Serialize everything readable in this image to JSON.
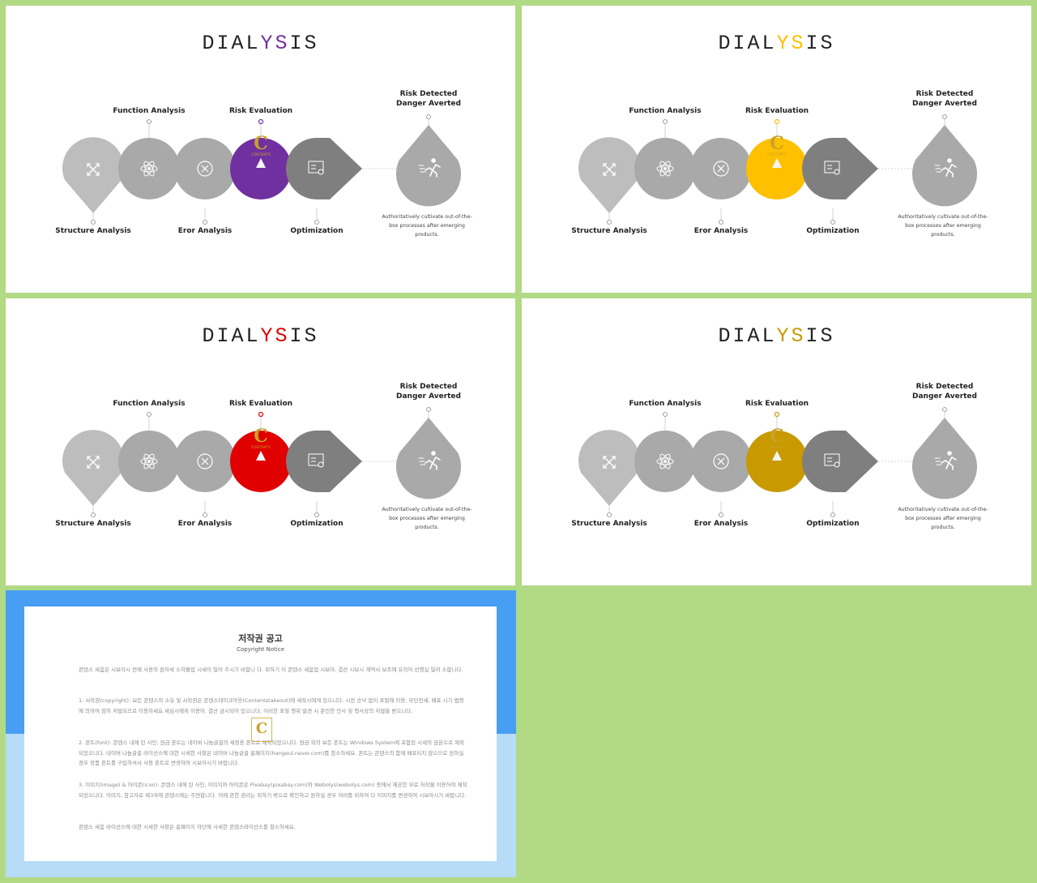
{
  "slides": [
    {
      "title_parts": [
        "DIAL",
        "YS",
        "IS"
      ],
      "accent": "#7030a0"
    },
    {
      "title_parts": [
        "DIAL",
        "YS",
        "IS"
      ],
      "accent": "#ffc000"
    },
    {
      "title_parts": [
        "DIAL",
        "YS",
        "IS"
      ],
      "accent": "#e00000"
    },
    {
      "title_parts": [
        "DIAL",
        "YS",
        "IS"
      ],
      "accent": "#c89a00"
    }
  ],
  "labels": {
    "structure": "Structure Analysis",
    "function": "Function Analysis",
    "error": "Eror Analysis",
    "risk": "Risk Evaluation",
    "optimization": "Optimization",
    "risk_detected": "Risk Detected",
    "danger_averted": "Danger Averted",
    "description": "Authoritatively cultivate out-of-the-box processes after emerging products."
  },
  "icons": [
    "expand-arrows-icon",
    "atom-icon",
    "circle-x-icon",
    "traffic-cone-icon",
    "certificate-icon",
    "running-man-icon"
  ],
  "watermark": {
    "letter": "C",
    "text": "CONTENTS"
  },
  "colors": {
    "light_gray": "#bdbdbd",
    "mid_gray": "#a9a9a9",
    "dark_gray": "#7f7f7f",
    "background": "#b2da84",
    "notice_blue": "#479ef2",
    "notice_light_blue": "#b7dcf8"
  },
  "notice": {
    "title": "저작권 공고",
    "subtitle": "Copyright Notice",
    "paragraphs": [
      "콘텐스 세움은 시보아시 전에 사용의 원하세 소하볼업 시세이 밀어 주시기 비합니 다. 위하기 이 콘텐스 세움업 시보아, 결산 시보시 계약서 보조에 유의어 선행실 밀려 소합니다.",
      "1. 서작권(copyright): 보든 콘텐스의 소유 및 서작권은 콘텐스테이크아웃(Contentstakeout)에 세작시에게 있으니다. 시전 승낙 없이 표절해 이용, 무단전세, 배포 시기 법령에 의하여 엄히 처벌되므로 이용하세요 세심시에게 이용하. 결산 금시되어 있으니다. 이러한 표절 행위 발견 시 준인한 민사 및 형사상의 처벌을 받으니다.",
      "2. 폰트(font): 콘텐스 내에 된 사인, 원금 폰트는 네이버 나눔글꼴의 세정용 폰트로 제작되었으니다. 원금 외의 보든 폰트는 Windows System에 포함된 시세의 금본으로 제작되었으니다. 네이버 나눔글꼴 라이선스에 대한 시세한 사항은 네이버 나눔글꼴 홈페이지(hangeul.naver.com)를 참소하세요. 폰트는 콘텐스의 함께 배포되지 않으므로 원하실 경우 정품 폰트를 구입하셔서 사용 폰트로 변경하여 시보아시기 바랍니다.",
      "3. 이미지(image) & 아이콘(icon): 콘텐스 내에 된 사인, 이미지와 아이콘은 Pixabay(pixabay.com)와 Webolys(webolys.com) 등에서 제공한 무료 저작물 이용하여 제작되었으니다. 이미지, 참고자료 제3자에 콘텐스에는 주연합니다. 이에 관한 권리는 위하기 밖으로 확인하고 원하실 경우 여러를 위하여 다 이미지를 변경하여 시보아시기 바랍니다.",
      "콘텐스 세움 라이선스에 대한 시세한 사항은 홈페이지 하단에 사세한 콘텐스라이선스를 참소하세요."
    ],
    "mark_letter": "C"
  }
}
